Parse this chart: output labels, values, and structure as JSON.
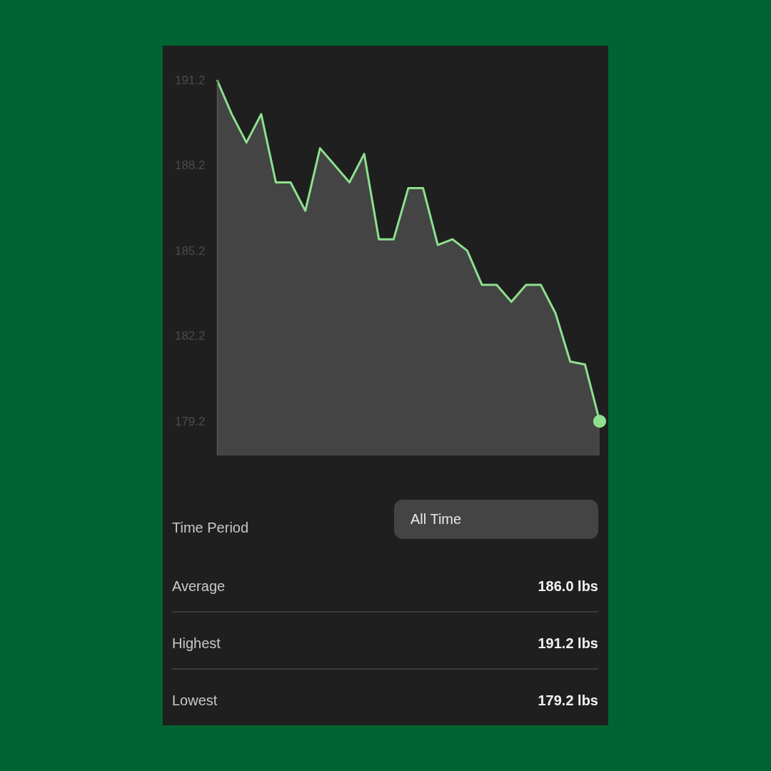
{
  "chart_data": {
    "type": "area",
    "categories": [
      null,
      null,
      null,
      null,
      null,
      null,
      null,
      null,
      null,
      null,
      null,
      null,
      null,
      null,
      null,
      null,
      null,
      null,
      null,
      null,
      null,
      null,
      null,
      null,
      null,
      null,
      null
    ],
    "series": [
      {
        "color": "#8ee08e",
        "values": [
          191.2,
          190.0,
          189.0,
          190.0,
          187.6,
          187.6,
          186.6,
          188.8,
          188.2,
          187.6,
          188.6,
          185.6,
          185.6,
          187.4,
          187.4,
          185.4,
          185.6,
          185.2,
          184.0,
          184.0,
          183.4,
          184.0,
          184.0,
          183.0,
          181.3,
          181.2,
          179.2
        ]
      },
      {
        "type": "scatter",
        "color": "#8ee08e",
        "values": [
          null,
          null,
          null,
          null,
          null,
          null,
          null,
          null,
          null,
          null,
          null,
          null,
          null,
          null,
          null,
          null,
          null,
          null,
          null,
          null,
          null,
          null,
          null,
          null,
          null,
          null,
          179.2
        ]
      }
    ],
    "ylim": [
      178.0,
      191.2
    ],
    "yticks": [
      179.2,
      182.2,
      185.2,
      188.2,
      191.2
    ],
    "tick_labels": "y",
    "annotations": [
      "Time Period",
      "All Time",
      "Average",
      "186.0 lbs",
      "Highest",
      "191.2 lbs",
      "Lowest",
      "179.2 lbs"
    ]
  }
}
